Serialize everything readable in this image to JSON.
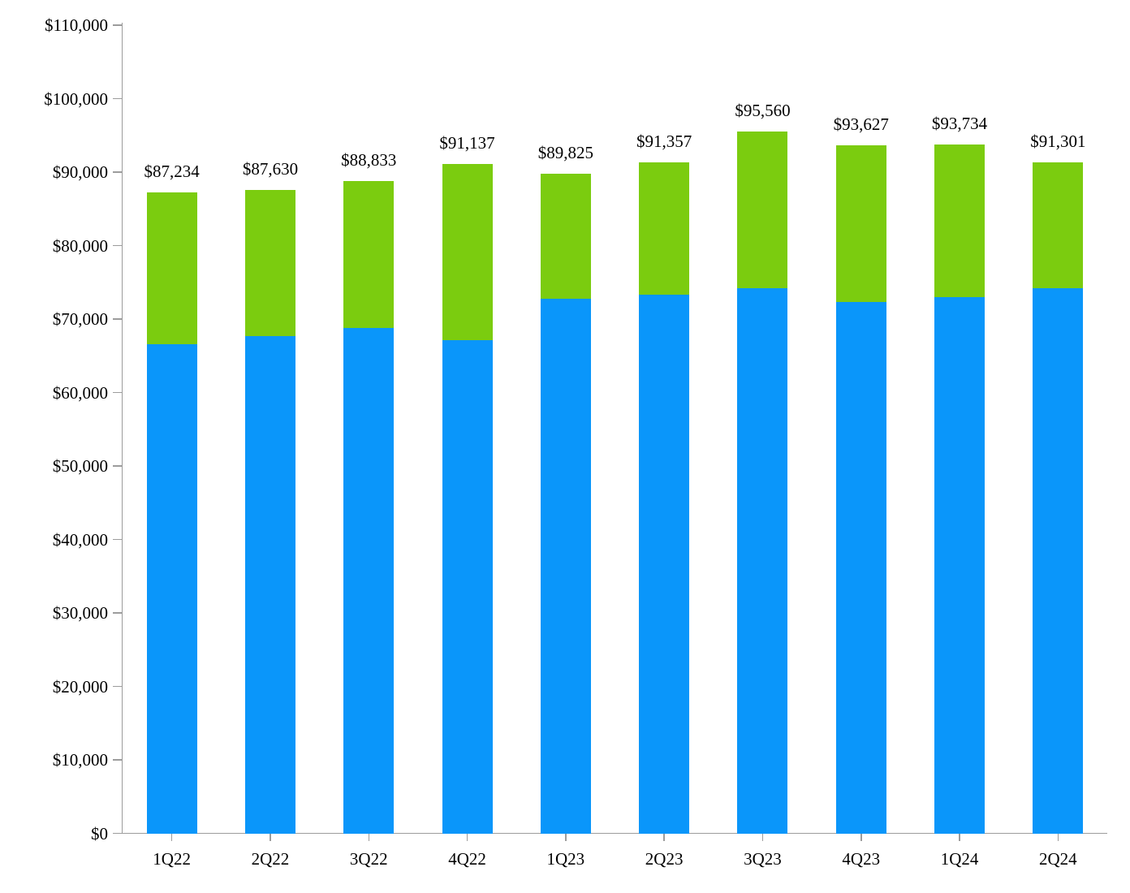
{
  "chart_data": {
    "type": "bar",
    "stacked": true,
    "title": "",
    "xlabel": "",
    "ylabel": "",
    "categories": [
      "1Q22",
      "2Q22",
      "3Q22",
      "4Q22",
      "1Q23",
      "2Q23",
      "3Q23",
      "4Q23",
      "1Q24",
      "2Q24"
    ],
    "series": [
      {
        "name": "lower-segment-blue",
        "color": "#0A96FA",
        "values": [
          66600,
          67700,
          68800,
          67100,
          72800,
          73300,
          74200,
          72300,
          73000,
          74200
        ]
      },
      {
        "name": "upper-segment-green",
        "color": "#7BCC0F",
        "values": [
          20634,
          19930,
          20033,
          24037,
          17025,
          18057,
          21360,
          21327,
          20734,
          17101
        ]
      }
    ],
    "total_values": [
      87234,
      87630,
      88833,
      91137,
      89825,
      91357,
      95560,
      93627,
      93734,
      91301
    ],
    "total_labels": [
      "$87,234",
      "$87,630",
      "$88,833",
      "$91,137",
      "$89,825",
      "$91,357",
      "$95,560",
      "$93,627",
      "$93,734",
      "$91,301"
    ],
    "ylim": [
      0,
      110000
    ],
    "ytick_step": 10000,
    "ytick_labels": [
      "$0",
      "$10,000",
      "$20,000",
      "$30,000",
      "$40,000",
      "$50,000",
      "$60,000",
      "$70,000",
      "$80,000",
      "$90,000",
      "$100,000",
      "$110,000"
    ],
    "grid": false,
    "legend": "none",
    "data_labels": "totals-above-bars",
    "axis_color": "#9C9C9C",
    "text_color": "#000000",
    "background_color": "#FFFFFF"
  }
}
